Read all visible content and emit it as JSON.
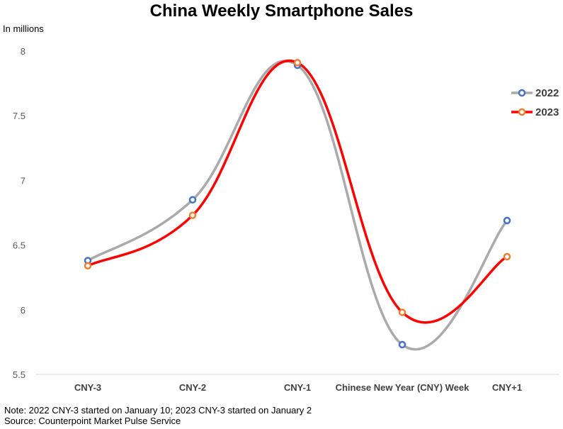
{
  "chart_data": {
    "type": "line",
    "title": "China Weekly Smartphone Sales",
    "ylabel": "In millions",
    "xlabel": "",
    "categories": [
      "CNY-3",
      "CNY-2",
      "CNY-1",
      "Chinese New Year (CNY) Week",
      "CNY+1"
    ],
    "ylim": [
      5.5,
      8
    ],
    "yticks": [
      "5.5",
      "6",
      "6.5",
      "7",
      "7.5",
      "8"
    ],
    "smooth": true,
    "grid": false,
    "legend": "right",
    "series": [
      {
        "name": "2022",
        "values": [
          6.38,
          6.85,
          7.89,
          5.73,
          6.69
        ],
        "color": "#aaaaaa",
        "marker_color": "#4472c4"
      },
      {
        "name": "2023",
        "values": [
          6.34,
          6.73,
          7.91,
          5.98,
          6.41
        ],
        "color": "#ff0000",
        "marker_color": "#ed7d31"
      }
    ]
  },
  "notes": {
    "line1": "Note: 2022 CNY-3 started on January 10; 2023 CNY-3 started on January 2",
    "line2": "Source: Counterpoint Market Pulse Service"
  }
}
